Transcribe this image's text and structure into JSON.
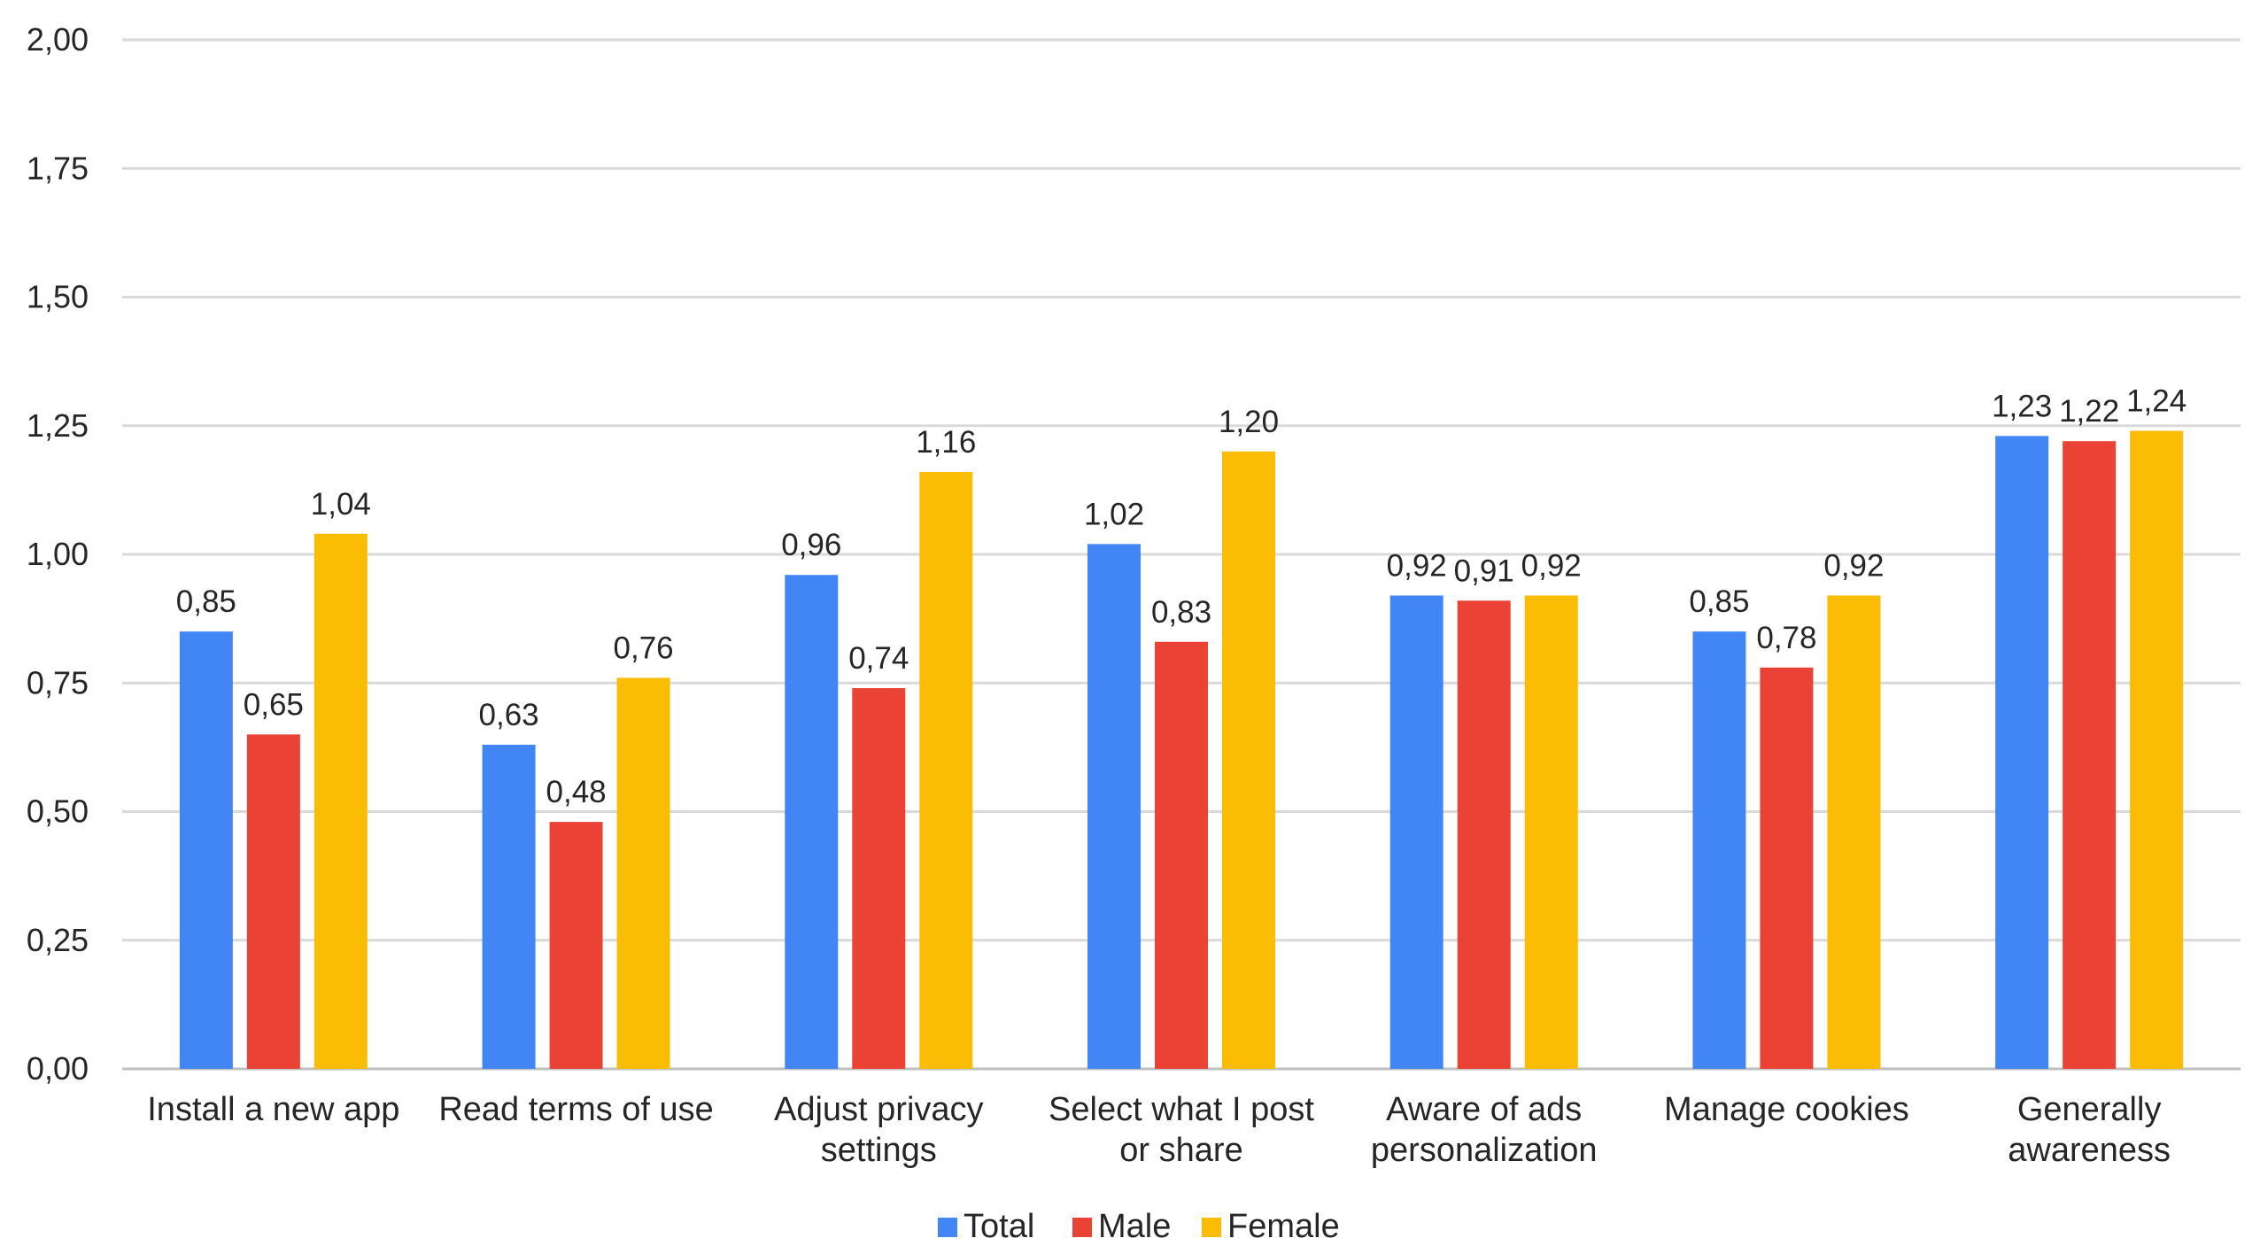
{
  "chart_data": {
    "type": "bar",
    "categories": [
      [
        "Install a new app"
      ],
      [
        "Read terms of use"
      ],
      [
        "Adjust privacy",
        "settings"
      ],
      [
        "Select what I post",
        "or share"
      ],
      [
        "Aware of ads",
        "personalization"
      ],
      [
        "Manage cookies"
      ],
      [
        "Generally",
        "awareness"
      ]
    ],
    "series": [
      {
        "name": "Total",
        "color": "#4285F4",
        "values": [
          0.85,
          0.63,
          0.96,
          1.02,
          0.92,
          0.85,
          1.23
        ],
        "labels": [
          "0,85",
          "0,63",
          "0,96",
          "1,02",
          "0,92",
          "0,85",
          "1,23"
        ]
      },
      {
        "name": "Male",
        "color": "#EA4335",
        "values": [
          0.65,
          0.48,
          0.74,
          0.83,
          0.91,
          0.78,
          1.22
        ],
        "labels": [
          "0,65",
          "0,48",
          "0,74",
          "0,83",
          "0,91",
          "0,78",
          "1,22"
        ]
      },
      {
        "name": "Female",
        "color": "#FBBC04",
        "values": [
          1.04,
          0.76,
          1.16,
          1.2,
          0.92,
          0.92,
          1.24
        ],
        "labels": [
          "1,04",
          "0,76",
          "1,16",
          "1,20",
          "0,92",
          "0,92",
          "1,24"
        ]
      }
    ],
    "ylim": [
      0,
      2
    ],
    "yticks": [
      0,
      0.25,
      0.5,
      0.75,
      1.0,
      1.25,
      1.5,
      1.75,
      2.0
    ],
    "ytick_labels": [
      "0,00",
      "0,25",
      "0,50",
      "0,75",
      "1,00",
      "1,25",
      "1,50",
      "1,75",
      "2,00"
    ],
    "grid": true,
    "legend_position": "bottom-center",
    "xlabel": "",
    "ylabel": ""
  }
}
